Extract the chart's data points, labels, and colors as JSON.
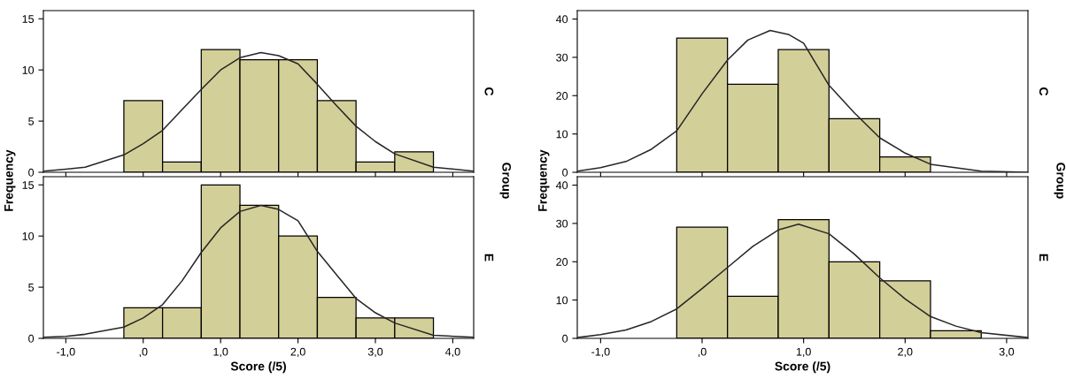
{
  "chart_data": [
    {
      "type": "histogram",
      "bins": [
        -0.25,
        0.25,
        0.75,
        1.25,
        1.75,
        2.25,
        2.75,
        3.25,
        3.75
      ],
      "values": [
        7,
        1,
        12,
        11,
        11,
        7,
        1,
        2
      ],
      "color": "#d3cf98",
      "series": [
        {
          "type": "line",
          "color": "#262626",
          "x": [
            -1.29,
            -1.0,
            -0.75,
            -0.25,
            0.0,
            0.25,
            0.5,
            0.75,
            1.0,
            1.25,
            1.52,
            1.75,
            2.0,
            2.25,
            2.5,
            2.75,
            3.0,
            3.25,
            3.75,
            4.27
          ],
          "values": [
            0.1,
            0.3,
            0.5,
            1.7,
            2.8,
            4.1,
            6.1,
            8.1,
            10.0,
            11.2,
            11.7,
            11.4,
            10.6,
            8.6,
            6.5,
            4.5,
            3.0,
            1.8,
            0.5,
            0.1
          ]
        }
      ],
      "xlim": [
        -1.29,
        4.27
      ],
      "ylim": [
        0,
        15.8
      ],
      "yticks": [
        0,
        5,
        10,
        15
      ],
      "xticks": [
        {
          "value": -1,
          "label": null
        },
        {
          "value": 0,
          "label": null
        },
        {
          "value": 1,
          "label": null
        },
        {
          "value": 2,
          "label": null
        },
        {
          "value": 3,
          "label": null
        },
        {
          "value": 4,
          "label": null
        }
      ],
      "tick_labels": "y",
      "ylabel": "Frequency",
      "y2label": "Group",
      "annotations": [
        "C"
      ],
      "grid": false,
      "legend": false
    },
    {
      "type": "histogram",
      "bins": [
        -0.25,
        0.25,
        0.75,
        1.25,
        1.75,
        2.25,
        2.75,
        3.25,
        3.75
      ],
      "values": [
        3,
        3,
        15,
        13,
        10,
        4,
        2,
        2
      ],
      "color": "#d3cf98",
      "series": [
        {
          "type": "line",
          "color": "#262626",
          "x": [
            -1.29,
            -1.0,
            -0.75,
            -0.25,
            0.0,
            0.25,
            0.5,
            0.75,
            1.0,
            1.25,
            1.52,
            1.75,
            2.0,
            2.25,
            2.5,
            2.75,
            3.0,
            3.25,
            3.75,
            4.27
          ],
          "values": [
            0.1,
            0.2,
            0.4,
            1.1,
            2.0,
            3.3,
            5.6,
            8.4,
            10.8,
            12.4,
            13.0,
            12.6,
            11.5,
            8.5,
            6.2,
            3.9,
            2.5,
            1.5,
            0.3,
            0.1
          ]
        }
      ],
      "xlim": [
        -1.29,
        4.27
      ],
      "ylim": [
        0,
        15.8
      ],
      "yticks": [
        0,
        5,
        10,
        15
      ],
      "xticks": [
        {
          "value": -1,
          "label": "-1,0"
        },
        {
          "value": 0,
          "label": ",0"
        },
        {
          "value": 1,
          "label": "1,0"
        },
        {
          "value": 2,
          "label": "2,0"
        },
        {
          "value": 3,
          "label": "3,0"
        },
        {
          "value": 4,
          "label": "4,0"
        }
      ],
      "xlabel": "Score (/5)",
      "annotations": [
        "E"
      ],
      "grid": false,
      "legend": false
    },
    {
      "type": "histogram",
      "bins": [
        -0.25,
        0.25,
        0.75,
        1.25,
        1.75,
        2.25
      ],
      "values": [
        35,
        23,
        32,
        14,
        4
      ],
      "color": "#d3cf98",
      "series": [
        {
          "type": "line",
          "color": "#262626",
          "x": [
            -1.23,
            -1.0,
            -0.75,
            -0.5,
            -0.25,
            0.0,
            0.25,
            0.45,
            0.67,
            0.85,
            1.0,
            1.25,
            1.5,
            1.75,
            2.0,
            2.25,
            2.75,
            3.21
          ],
          "values": [
            0.3,
            1.2,
            2.8,
            6.0,
            10.8,
            20.5,
            29.3,
            34.5,
            37,
            36,
            33.7,
            22.7,
            15.5,
            9.0,
            5.0,
            2.1,
            0.3,
            0
          ]
        }
      ],
      "xlim": [
        -1.23,
        3.21
      ],
      "ylim": [
        0,
        42.2
      ],
      "yticks": [
        0,
        10,
        20,
        30,
        40
      ],
      "xticks": [
        {
          "value": -1,
          "label": null
        },
        {
          "value": 0,
          "label": null
        },
        {
          "value": 1,
          "label": null
        },
        {
          "value": 2,
          "label": null
        },
        {
          "value": 3,
          "label": null
        }
      ],
      "tick_labels": "y",
      "ylabel": "Frequency",
      "y2label": "Group",
      "annotations": [
        "C"
      ],
      "grid": false,
      "legend": false
    },
    {
      "type": "histogram",
      "bins": [
        -0.25,
        0.25,
        0.75,
        1.25,
        1.75,
        2.25,
        2.75
      ],
      "values": [
        29,
        11,
        31,
        20,
        15,
        2
      ],
      "color": "#d3cf98",
      "series": [
        {
          "type": "line",
          "color": "#262626",
          "x": [
            -1.23,
            -1.0,
            -0.75,
            -0.5,
            -0.25,
            0.0,
            0.25,
            0.5,
            0.75,
            0.95,
            1.25,
            1.5,
            1.75,
            2.0,
            2.25,
            2.5,
            2.75,
            3.21
          ],
          "values": [
            0.2,
            1.0,
            2.2,
            4.4,
            7.7,
            13,
            18.5,
            24,
            28.3,
            29.8,
            27.3,
            22,
            15.8,
            10.3,
            5.7,
            3.2,
            1.5,
            0.2
          ]
        }
      ],
      "xlim": [
        -1.23,
        3.21
      ],
      "ylim": [
        0,
        42.2
      ],
      "yticks": [
        0,
        10,
        20,
        30,
        40
      ],
      "xticks": [
        {
          "value": -1,
          "label": "-1,0"
        },
        {
          "value": 0,
          "label": ",0"
        },
        {
          "value": 1,
          "label": "1,0"
        },
        {
          "value": 2,
          "label": "2,0"
        },
        {
          "value": 3,
          "label": "3,0"
        }
      ],
      "xlabel": "Score (/5)",
      "annotations": [
        "E"
      ],
      "grid": false,
      "legend": false
    }
  ]
}
